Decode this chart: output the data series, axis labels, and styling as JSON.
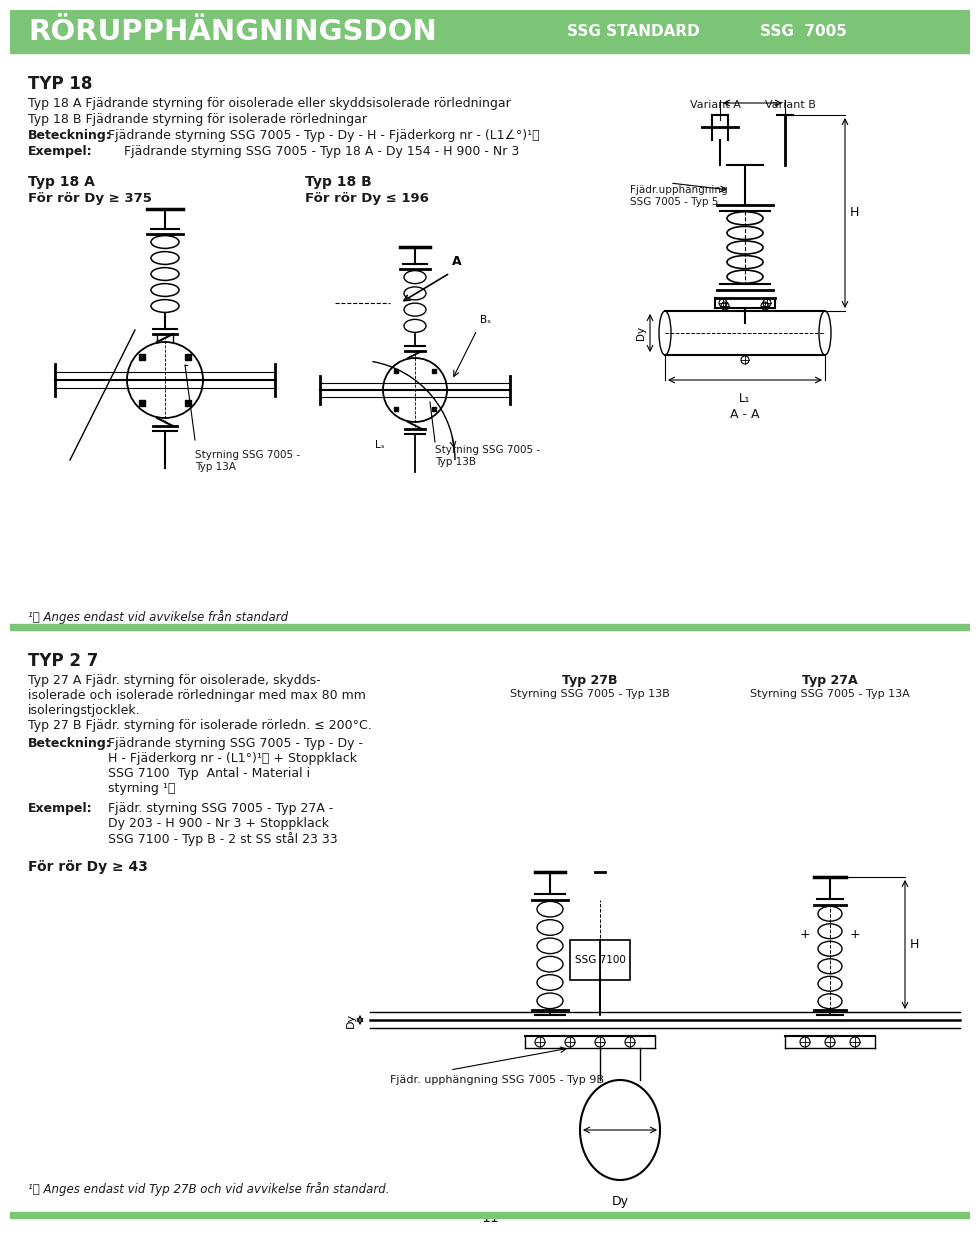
{
  "header_bg": "#7cc576",
  "header_text_color": "#ffffff",
  "header_title": "RÖRUPPHÄNGNINGSDON",
  "header_right1": "SSG STANDARD",
  "header_right2": "SSG  7005",
  "bg_color": "#ffffff",
  "text_color": "#1a1a1a",
  "divider_color": "#7cc576",
  "section1_heading": "TYP 18",
  "typ18a_label": "Typ 18 A",
  "typ18a_sub": "För rör Dy ≥ 375",
  "typ18b_label": "Typ 18 B",
  "typ18b_sub": "För rör Dy ≤ 196",
  "variant_a": "Variant A",
  "variant_b": "Variant B",
  "styrning_13a": "Styrning SSG 7005 -\nTyp 13A",
  "styrning_13b": "Styrning SSG 7005 -\nTyp 13B",
  "fjädr_upphangning": "Fjädr.upphängning\nSSG 7005 - Typ 5",
  "aa_label": "A - A",
  "footnote1": "¹⧉ Anges endast vid avvikelse från standard",
  "section2_heading": "TYP 2 7",
  "for_ror_dy": "För rör Dy ≥ 43",
  "typ27b_label": "Typ 27B",
  "typ27b_sub": "Styrning SSG 7005 - Typ 13B",
  "typ27a_label": "Typ 27A",
  "typ27a_sub": "Styrning SSG 7005 - Typ 13A",
  "fjädr_upph_9b": "Fjädr. upphängning SSG 7005 - Typ 9B",
  "ssg7100_label": "SSG 7100",
  "dy_label": "Dy",
  "footnote2": "¹⧉ Anges endast vid Typ 27B och vid avvikelse från standard.",
  "page_number": "11"
}
